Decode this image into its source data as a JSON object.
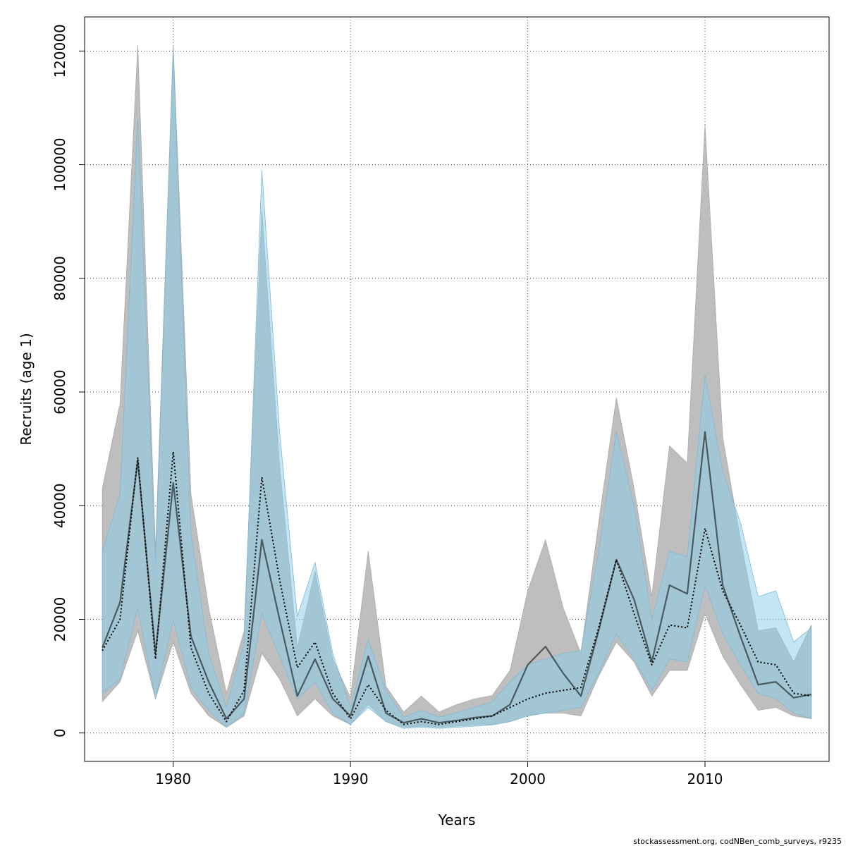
{
  "chart_data": {
    "type": "area",
    "title": "",
    "xlabel": "Years",
    "ylabel": "Recruits (age 1)",
    "xlim": [
      1975,
      2017
    ],
    "ylim": [
      -5000,
      126000
    ],
    "xticks": [
      1980,
      1990,
      2000,
      2010
    ],
    "yticks": [
      0,
      20000,
      40000,
      60000,
      80000,
      100000,
      120000
    ],
    "grid": true,
    "footer": "stockassessment.org, codNBen_comb_surveys, r9235",
    "colors": {
      "grey_band": "#bebebe",
      "blue_band": "#87ceeb",
      "line": "#000000"
    },
    "x": [
      1976,
      1977,
      1978,
      1979,
      1980,
      1981,
      1982,
      1983,
      1984,
      1985,
      1986,
      1987,
      1988,
      1989,
      1990,
      1991,
      1992,
      1993,
      1994,
      1995,
      1996,
      1997,
      1998,
      1999,
      2000,
      2001,
      2002,
      2003,
      2004,
      2005,
      2006,
      2007,
      2008,
      2009,
      2010,
      2011,
      2012,
      2013,
      2014,
      2015,
      2016
    ],
    "series": [
      {
        "values": [
          15000,
          23000,
          48000,
          14000,
          44000,
          17000,
          9000,
          2500,
          6000,
          34000,
          20000,
          6500,
          13000,
          6000,
          3000,
          13500,
          3500,
          1800,
          2500,
          1800,
          2200,
          2700,
          3000,
          5000,
          12000,
          15200,
          10500,
          6500,
          18000,
          30500,
          23500,
          12500,
          26000,
          24500,
          53000,
          26000,
          17000,
          8500,
          9000,
          6200,
          6800
        ],
        "lower": [
          5500,
          9000,
          18000,
          6000,
          16000,
          7000,
          3000,
          1000,
          3000,
          14000,
          9500,
          3000,
          6000,
          3000,
          1500,
          5000,
          2000,
          1000,
          1200,
          1000,
          1200,
          1400,
          1500,
          2000,
          3000,
          3500,
          3500,
          3000,
          10000,
          16000,
          12500,
          6500,
          11000,
          11000,
          21000,
          13500,
          8500,
          4000,
          4500,
          3000,
          2500
        ],
        "upper": [
          43000,
          58000,
          121000,
          32000,
          121000,
          42000,
          22000,
          7000,
          18000,
          92000,
          47000,
          15000,
          28500,
          13000,
          6200,
          32000,
          8200,
          3700,
          6500,
          3700,
          5000,
          6000,
          6600,
          11000,
          25000,
          34000,
          22000,
          14000,
          37000,
          59000,
          43000,
          24000,
          50500,
          47500,
          107000,
          52000,
          34000,
          18000,
          18500,
          12500,
          19000
        ]
      },
      {
        "values": [
          14500,
          20000,
          48500,
          13000,
          49500,
          15000,
          7000,
          2000,
          7500,
          45000,
          27000,
          11500,
          16000,
          7000,
          2500,
          8500,
          4000,
          1500,
          2000,
          1500,
          2000,
          2500,
          3000,
          4500,
          6000,
          7000,
          7500,
          8000,
          18500,
          30500,
          21000,
          12000,
          19000,
          18500,
          36000,
          25000,
          19000,
          12500,
          12000,
          7000,
          6500
        ],
        "lower": [
          7000,
          9500,
          22000,
          6000,
          20000,
          8000,
          4000,
          1000,
          3500,
          21000,
          13500,
          6000,
          9000,
          3500,
          1500,
          4500,
          2000,
          800,
          1000,
          800,
          1000,
          1200,
          1400,
          2000,
          3000,
          3500,
          4000,
          4500,
          10500,
          17500,
          13000,
          7500,
          13000,
          12500,
          26000,
          17500,
          12000,
          7000,
          6000,
          3500,
          2500
        ],
        "upper": [
          32000,
          42000,
          108000,
          30000,
          120000,
          35000,
          14000,
          4500,
          16000,
          99000,
          53000,
          20500,
          30000,
          14000,
          4500,
          16500,
          7500,
          2800,
          4000,
          2800,
          3600,
          4500,
          5500,
          9000,
          12000,
          13000,
          14000,
          14500,
          32000,
          53000,
          40000,
          20000,
          32000,
          31000,
          63000,
          46000,
          37000,
          24000,
          25000,
          16000,
          18500
        ]
      }
    ]
  }
}
